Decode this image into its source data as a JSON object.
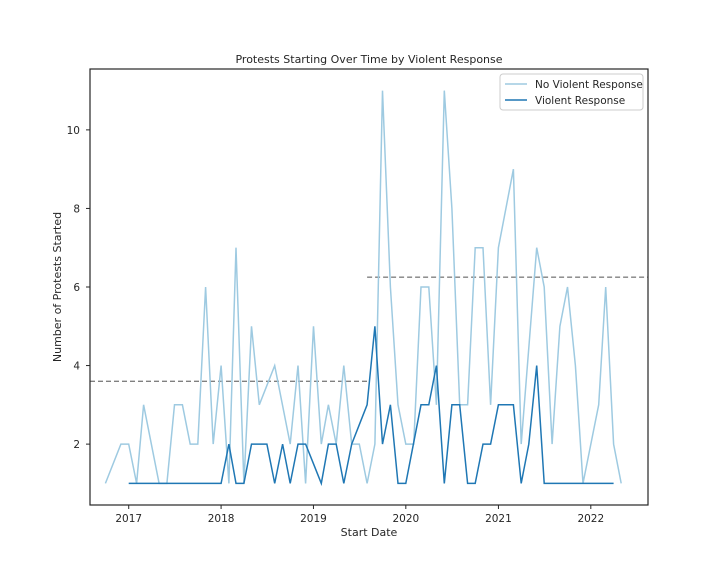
{
  "chart_data": {
    "type": "line",
    "title": "Protests Starting Over Time by Violent Response",
    "xlabel": "Start Date",
    "ylabel": "Number of Protests Started",
    "x_ticks": [
      "2017",
      "2018",
      "2019",
      "2020",
      "2021",
      "2022"
    ],
    "y_ticks": [
      "2",
      "4",
      "6",
      "8",
      "10"
    ],
    "xlim": [
      "2016-08-01",
      "2022-08-15"
    ],
    "ylim": [
      0.45,
      11.55
    ],
    "grid": false,
    "legend_position": "top-right",
    "series": [
      {
        "name": "No Violent Response",
        "color": "#9ecae1",
        "points": [
          [
            "2016-10-01",
            1
          ],
          [
            "2016-12-01",
            2
          ],
          [
            "2017-01-01",
            2
          ],
          [
            "2017-02-01",
            1
          ],
          [
            "2017-03-01",
            3
          ],
          [
            "2017-05-01",
            1
          ],
          [
            "2017-06-01",
            1
          ],
          [
            "2017-07-01",
            3
          ],
          [
            "2017-08-01",
            3
          ],
          [
            "2017-09-01",
            2
          ],
          [
            "2017-10-01",
            2
          ],
          [
            "2017-11-01",
            6
          ],
          [
            "2017-12-01",
            2
          ],
          [
            "2018-01-01",
            4
          ],
          [
            "2018-02-01",
            1
          ],
          [
            "2018-03-01",
            7
          ],
          [
            "2018-04-01",
            1
          ],
          [
            "2018-05-01",
            5
          ],
          [
            "2018-06-01",
            3
          ],
          [
            "2018-08-01",
            4
          ],
          [
            "2018-10-01",
            2
          ],
          [
            "2018-11-01",
            4
          ],
          [
            "2018-12-01",
            1
          ],
          [
            "2019-01-01",
            5
          ],
          [
            "2019-02-01",
            2
          ],
          [
            "2019-03-01",
            3
          ],
          [
            "2019-04-01",
            2
          ],
          [
            "2019-05-01",
            4
          ],
          [
            "2019-06-01",
            2
          ],
          [
            "2019-07-01",
            2
          ],
          [
            "2019-08-01",
            1
          ],
          [
            "2019-09-01",
            2
          ],
          [
            "2019-10-01",
            11
          ],
          [
            "2019-11-01",
            6
          ],
          [
            "2019-12-01",
            3
          ],
          [
            "2020-01-01",
            2
          ],
          [
            "2020-02-01",
            2
          ],
          [
            "2020-03-01",
            6
          ],
          [
            "2020-04-01",
            6
          ],
          [
            "2020-05-01",
            3
          ],
          [
            "2020-06-01",
            11
          ],
          [
            "2020-07-01",
            8
          ],
          [
            "2020-08-01",
            3
          ],
          [
            "2020-09-01",
            3
          ],
          [
            "2020-10-01",
            7
          ],
          [
            "2020-11-01",
            7
          ],
          [
            "2020-12-01",
            3
          ],
          [
            "2021-01-01",
            7
          ],
          [
            "2021-03-01",
            9
          ],
          [
            "2021-04-01",
            2
          ],
          [
            "2021-06-01",
            7
          ],
          [
            "2021-07-01",
            6
          ],
          [
            "2021-08-01",
            2
          ],
          [
            "2021-09-01",
            5
          ],
          [
            "2021-10-01",
            6
          ],
          [
            "2021-11-01",
            4
          ],
          [
            "2021-12-01",
            1
          ],
          [
            "2022-02-01",
            3
          ],
          [
            "2022-03-01",
            6
          ],
          [
            "2022-04-01",
            2
          ],
          [
            "2022-05-01",
            1
          ]
        ]
      },
      {
        "name": "Violent Response",
        "color": "#1f77b4",
        "points": [
          [
            "2017-01-01",
            1
          ],
          [
            "2018-01-01",
            1
          ],
          [
            "2018-02-01",
            2
          ],
          [
            "2018-03-01",
            1
          ],
          [
            "2018-04-01",
            1
          ],
          [
            "2018-05-01",
            2
          ],
          [
            "2018-06-01",
            2
          ],
          [
            "2018-07-01",
            2
          ],
          [
            "2018-08-01",
            1
          ],
          [
            "2018-09-01",
            2
          ],
          [
            "2018-10-01",
            1
          ],
          [
            "2018-11-01",
            2
          ],
          [
            "2018-12-01",
            2
          ],
          [
            "2019-01-01",
            1.5
          ],
          [
            "2019-02-01",
            1
          ],
          [
            "2019-03-01",
            2
          ],
          [
            "2019-04-01",
            2
          ],
          [
            "2019-05-01",
            1
          ],
          [
            "2019-06-01",
            2
          ],
          [
            "2019-08-01",
            3
          ],
          [
            "2019-09-01",
            5
          ],
          [
            "2019-10-01",
            2
          ],
          [
            "2019-11-01",
            3
          ],
          [
            "2019-12-01",
            1
          ],
          [
            "2020-01-01",
            1
          ],
          [
            "2020-03-01",
            3
          ],
          [
            "2020-04-01",
            3
          ],
          [
            "2020-05-01",
            4
          ],
          [
            "2020-06-01",
            1
          ],
          [
            "2020-07-01",
            3
          ],
          [
            "2020-08-01",
            3
          ],
          [
            "2020-09-01",
            1
          ],
          [
            "2020-10-01",
            1
          ],
          [
            "2020-11-01",
            2
          ],
          [
            "2020-12-01",
            2
          ],
          [
            "2021-01-01",
            3
          ],
          [
            "2021-02-01",
            3
          ],
          [
            "2021-03-01",
            3
          ],
          [
            "2021-04-01",
            1
          ],
          [
            "2021-05-01",
            2
          ],
          [
            "2021-06-01",
            4
          ],
          [
            "2021-07-01",
            1
          ],
          [
            "2021-08-01",
            1
          ],
          [
            "2022-04-01",
            1
          ]
        ]
      }
    ],
    "reference_lines": [
      {
        "x_start": "2016-08-01",
        "x_end": "2019-08-01",
        "y": 3.6,
        "color": "#808080",
        "style": "dashed"
      },
      {
        "x_start": "2019-08-01",
        "x_end": "2022-08-15",
        "y": 6.25,
        "color": "#808080",
        "style": "dashed"
      }
    ]
  }
}
